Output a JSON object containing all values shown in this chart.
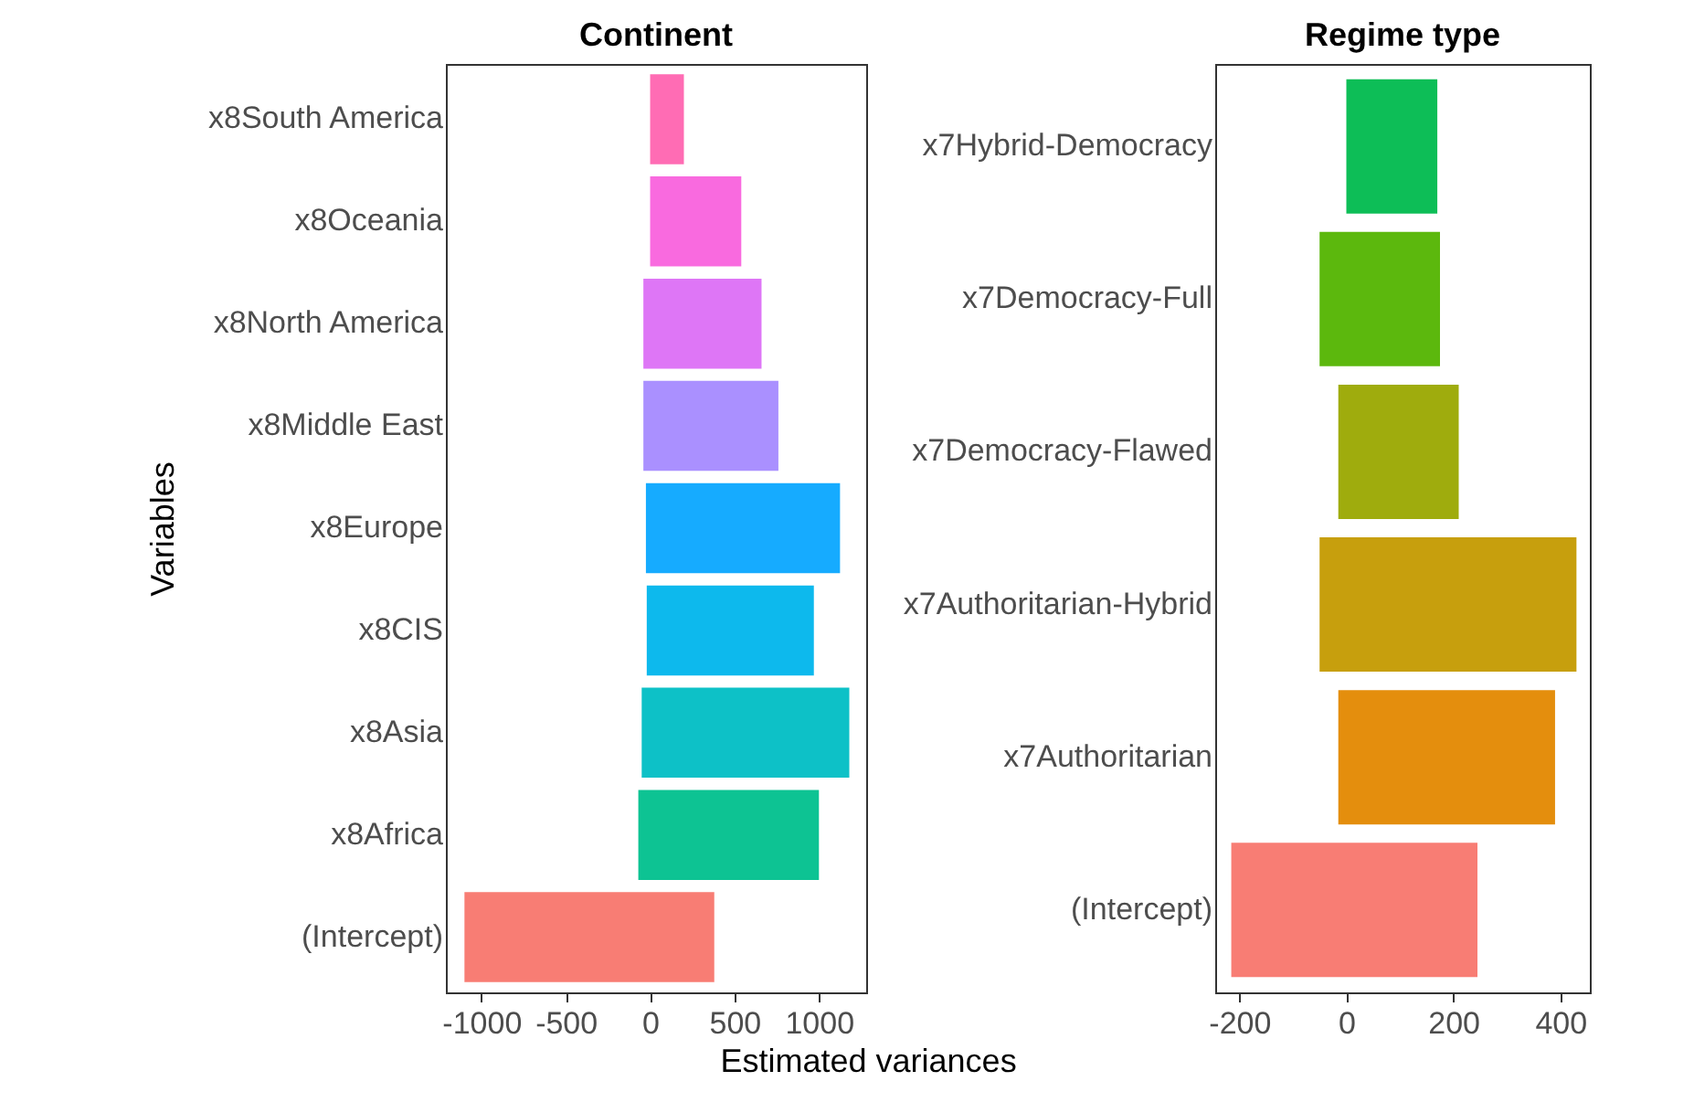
{
  "chart_data": [
    {
      "type": "bar",
      "orientation": "horizontal",
      "title": "Continent",
      "ylabel": "Variables",
      "xlabel": "Estimated variances",
      "categories": [
        "x8South America",
        "x8Oceania",
        "x8North America",
        "x8Middle East",
        "x8Europe",
        "x8CIS",
        "x8Asia",
        "x8Africa",
        "(Intercept)"
      ],
      "base": [
        0,
        0,
        -40,
        -40,
        -25,
        -20,
        -50,
        -70,
        -1100
      ],
      "values": [
        200,
        540,
        700,
        800,
        1150,
        990,
        1230,
        1070,
        1480
      ],
      "colors": [
        "#ff64b0",
        "#f962dd",
        "#dc6ff6",
        "#a58aff",
        "#0aa6ff",
        "#00b5ec",
        "#00bec4",
        "#00c08d",
        "#f8766d"
      ],
      "xlim": [
        -1210,
        1280
      ],
      "xticks": [
        -1000,
        -500,
        0,
        500,
        1000
      ],
      "grid": false
    },
    {
      "type": "bar",
      "orientation": "horizontal",
      "title": "Regime type",
      "categories": [
        "x7Hybrid-Democracy",
        "x7Democracy-Full",
        "x7Democracy-Flawed",
        "x7Authoritarian-Hybrid",
        "x7Authoritarian",
        "(Intercept)"
      ],
      "base": [
        0,
        -50,
        -15,
        -50,
        -15,
        -215
      ],
      "values": [
        170,
        225,
        225,
        480,
        405,
        460
      ],
      "colors": [
        "#00bb4e",
        "#53b400",
        "#9aa800",
        "#c49a00",
        "#e38800",
        "#f8766d"
      ],
      "xlim": [
        -245,
        455
      ],
      "xticks": [
        -200,
        0,
        200,
        400
      ],
      "grid": false
    }
  ]
}
